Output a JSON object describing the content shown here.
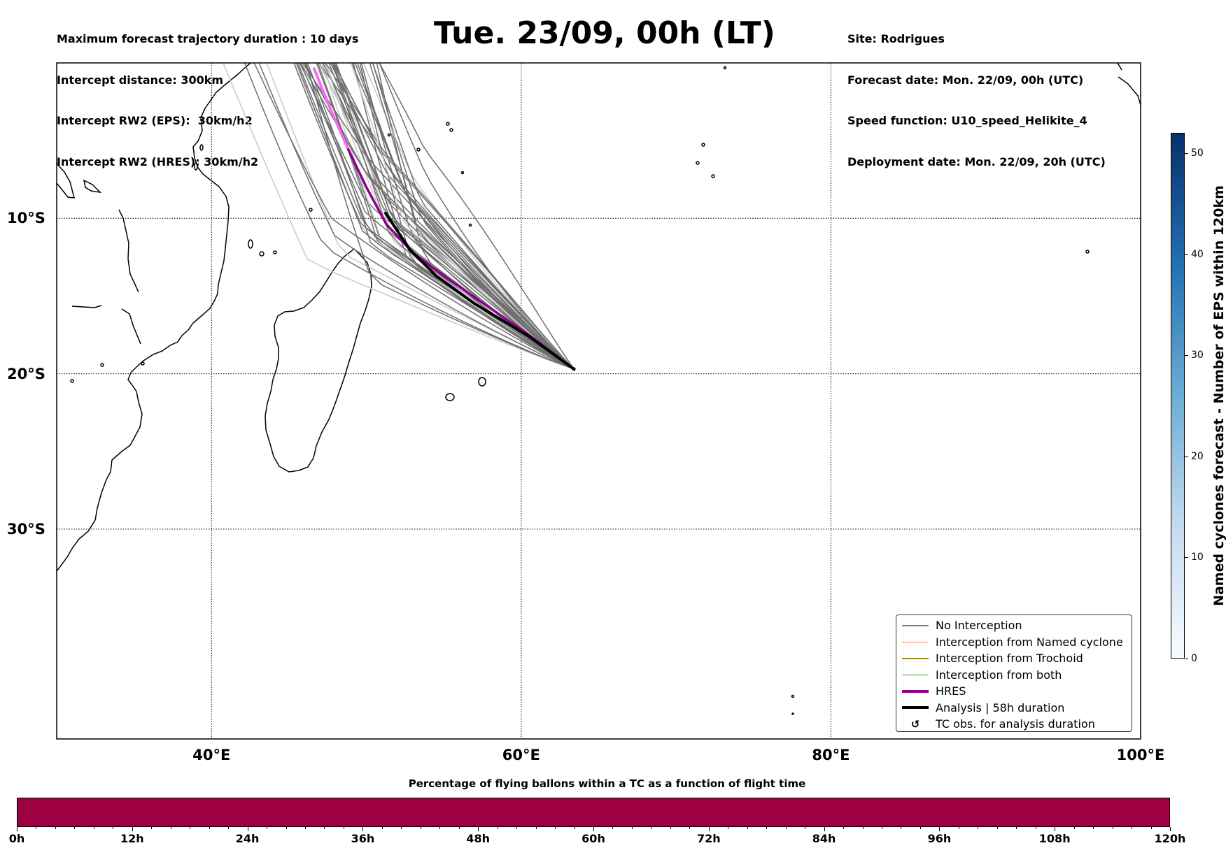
{
  "header_left": {
    "line1": "Maximum forecast trajectory duration : 10 days",
    "line2": "Intercept distance: 300km",
    "line3": "Intercept RW2 (EPS):  30km/h2",
    "line4": "Intercept RW2 (HRES): 30km/h2"
  },
  "title": "Tue. 23/09, 00h (LT)",
  "header_right": {
    "line1": "Site: Rodrigues",
    "line2": "Forecast date: Mon. 22/09, 00h (UTC)",
    "line3": "Speed function: U10_speed_Helikite_4",
    "line4": "Deployment date: Mon. 22/09, 20h (UTC)"
  },
  "map": {
    "lon_range": [
      30,
      100
    ],
    "lat_range": [
      -43.5,
      0
    ],
    "site_lonlat": [
      63.4,
      -19.7
    ],
    "lon_ticks": [
      {
        "value": 40,
        "label": "40°E"
      },
      {
        "value": 60,
        "label": "60°E"
      },
      {
        "value": 80,
        "label": "80°E"
      },
      {
        "value": 100,
        "label": "100°E"
      }
    ],
    "lat_ticks": [
      {
        "value": -10,
        "label": "10°S"
      },
      {
        "value": -20,
        "label": "20°S"
      },
      {
        "value": -30,
        "label": "30°S"
      }
    ],
    "hres_track": [
      [
        63.4,
        -19.7
      ],
      [
        60.5,
        -17.5
      ],
      [
        57.3,
        -15.3
      ],
      [
        55.0,
        -13.7
      ],
      [
        53.0,
        -12.2
      ],
      [
        51.3,
        -10.4
      ],
      [
        50.0,
        -8.0
      ],
      [
        48.8,
        -5.5
      ],
      [
        47.6,
        -2.8
      ],
      [
        46.6,
        -0.3
      ]
    ],
    "analysis_track": [
      [
        63.4,
        -19.7
      ],
      [
        60.5,
        -17.6
      ],
      [
        57.0,
        -15.5
      ],
      [
        54.5,
        -13.7
      ],
      [
        52.8,
        -12.0
      ],
      [
        51.2,
        -9.6
      ]
    ]
  },
  "legend": {
    "items": [
      {
        "label": "No Interception",
        "color": "#7f7f7f",
        "kind": "thin"
      },
      {
        "label": "Interception from Named cyclone",
        "color": "#ff7f50",
        "kind": "thin"
      },
      {
        "label": "Interception from Trochoid",
        "color": "#9a8c1b",
        "kind": "thin"
      },
      {
        "label": "Interception from both",
        "color": "#2ca02c",
        "kind": "thin"
      },
      {
        "label": "HRES",
        "color": "#8b008b",
        "kind": "thick"
      },
      {
        "label": "Analysis | 58h duration",
        "color": "#000000",
        "kind": "thick"
      },
      {
        "label": "TC obs. for analysis duration",
        "color": "#000000",
        "kind": "marker"
      }
    ]
  },
  "colorbar_right": {
    "label": "Named cyclones forecast - Number of EPS within 120km",
    "min": 0,
    "max": 52,
    "ticks": [
      0,
      10,
      20,
      30,
      40,
      50
    ]
  },
  "colorbar_bottom": {
    "title": "Percentage of flying ballons within a TC as a function of flight time",
    "fill_color": "#9e0142",
    "ticks": [
      "0h",
      "12h",
      "24h",
      "36h",
      "48h",
      "60h",
      "72h",
      "84h",
      "96h",
      "108h",
      "120h"
    ]
  },
  "colors": {
    "hres": "#8b008b",
    "hres_light": "#ff66ff",
    "eps": "#6f6f6f",
    "analysis": "#000000"
  }
}
